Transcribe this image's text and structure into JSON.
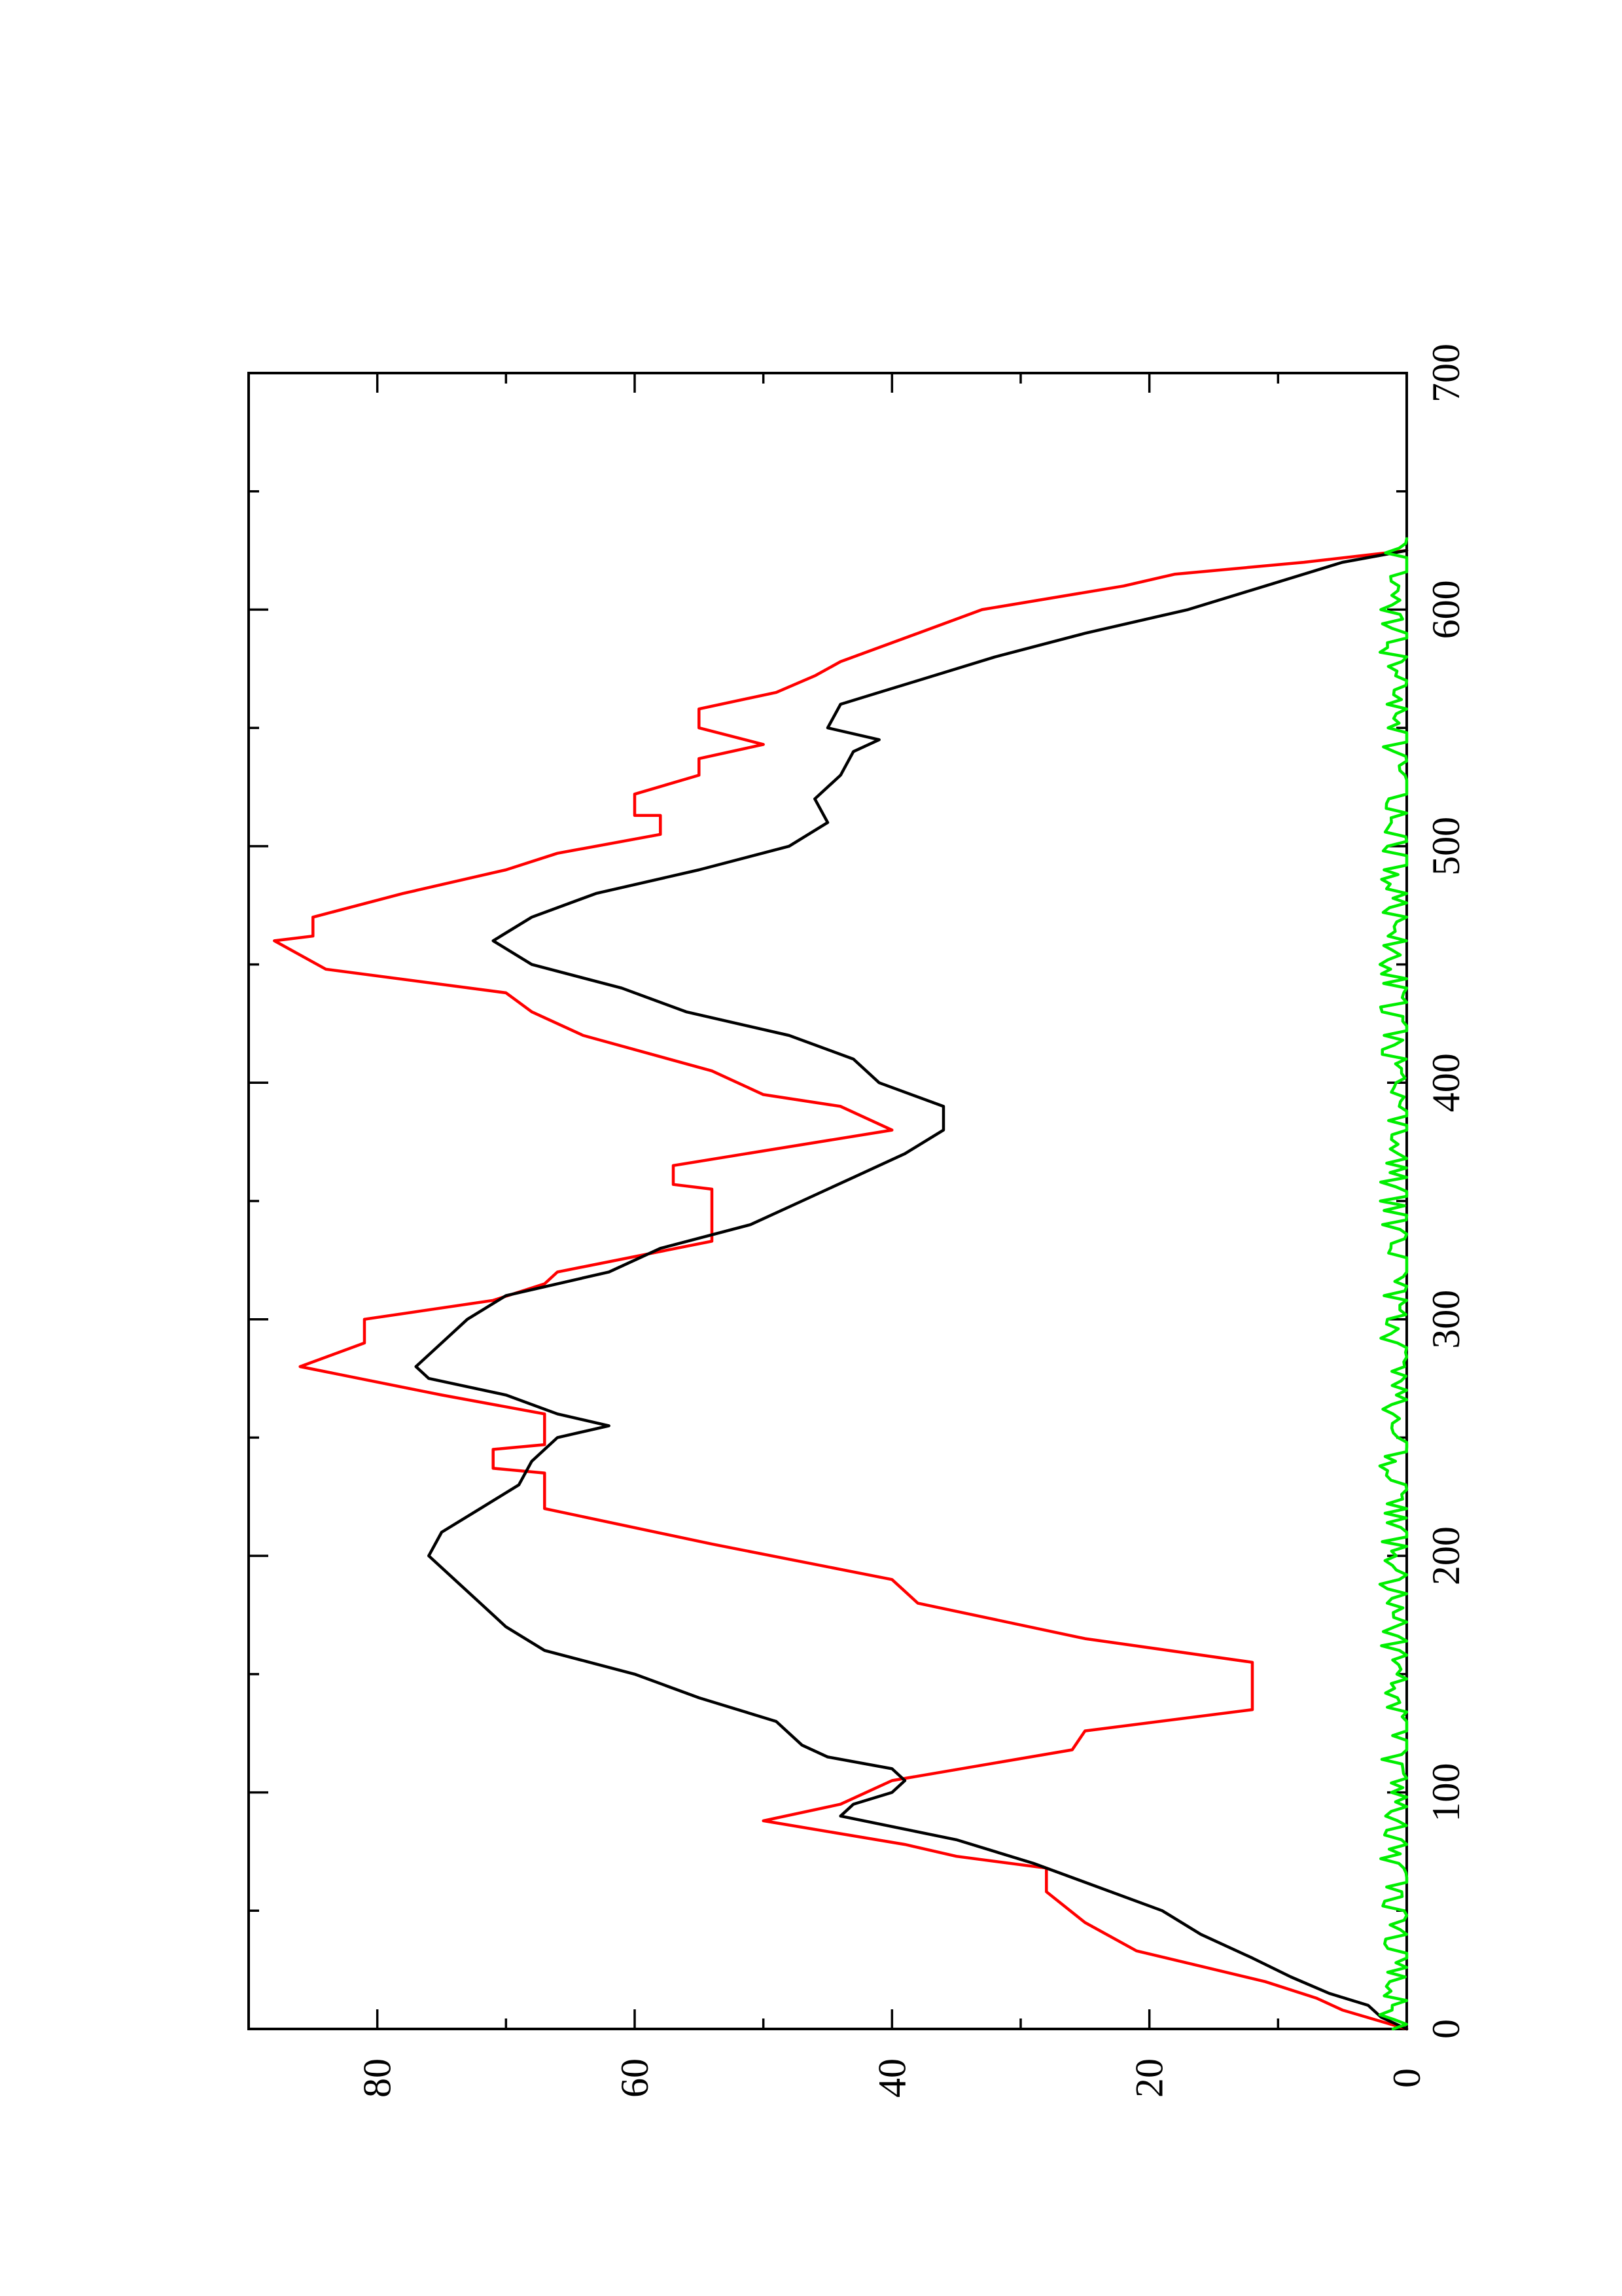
{
  "chart_data": {
    "type": "line",
    "orientation": "rotated-90-ccw",
    "title": "",
    "xlabel": "",
    "ylabel": "",
    "xlim": [
      0,
      700
    ],
    "ylim": [
      0,
      90
    ],
    "x_ticks": [
      0,
      100,
      200,
      300,
      400,
      500,
      600,
      700
    ],
    "y_ticks": [
      0,
      20,
      40,
      60,
      80
    ],
    "x_minor_ticks": [
      50,
      150,
      250,
      350,
      450,
      550,
      650
    ],
    "y_minor_ticks": [
      10,
      30,
      50,
      70
    ],
    "grid": false,
    "legend": "none",
    "series": [
      {
        "color": "#ff0000",
        "style": "step",
        "points": [
          [
            0,
            0
          ],
          [
            8,
            5
          ],
          [
            13,
            7
          ],
          [
            20,
            11
          ],
          [
            33,
            21
          ],
          [
            45,
            25
          ],
          [
            58,
            28
          ],
          [
            68,
            28
          ],
          [
            73,
            35
          ],
          [
            78,
            39
          ],
          [
            88,
            50
          ],
          [
            95,
            44
          ],
          [
            105,
            40
          ],
          [
            118,
            26
          ],
          [
            126,
            25
          ],
          [
            135,
            12
          ],
          [
            155,
            12
          ],
          [
            165,
            25
          ],
          [
            180,
            38
          ],
          [
            190,
            40
          ],
          [
            205,
            54
          ],
          [
            220,
            67
          ],
          [
            235,
            67
          ],
          [
            237,
            71
          ],
          [
            245,
            71
          ],
          [
            247,
            67
          ],
          [
            260,
            67
          ],
          [
            268,
            75
          ],
          [
            280,
            86
          ],
          [
            290,
            81
          ],
          [
            300,
            81
          ],
          [
            308,
            71
          ],
          [
            315,
            67
          ],
          [
            320,
            66
          ],
          [
            333,
            54
          ],
          [
            355,
            54
          ],
          [
            357,
            57
          ],
          [
            365,
            57
          ],
          [
            380,
            40
          ],
          [
            390,
            44
          ],
          [
            395,
            50
          ],
          [
            405,
            54
          ],
          [
            420,
            64
          ],
          [
            430,
            68
          ],
          [
            438,
            70
          ],
          [
            448,
            84
          ],
          [
            460,
            88
          ],
          [
            462,
            85
          ],
          [
            470,
            85
          ],
          [
            480,
            78
          ],
          [
            490,
            70
          ],
          [
            497,
            66
          ],
          [
            505,
            58
          ],
          [
            513,
            58
          ],
          [
            513,
            60
          ],
          [
            522,
            60
          ],
          [
            530,
            55
          ],
          [
            537,
            55
          ],
          [
            543,
            50
          ],
          [
            550,
            55
          ],
          [
            558,
            55
          ],
          [
            565,
            49
          ],
          [
            572,
            46
          ],
          [
            578,
            44
          ],
          [
            590,
            38
          ],
          [
            600,
            33
          ],
          [
            610,
            22
          ],
          [
            615,
            18
          ],
          [
            620,
            8
          ],
          [
            625,
            0
          ]
        ]
      },
      {
        "color": "#000000",
        "style": "line",
        "points": [
          [
            0,
            0
          ],
          [
            5,
            2
          ],
          [
            10,
            3
          ],
          [
            15,
            6
          ],
          [
            22,
            9
          ],
          [
            30,
            12
          ],
          [
            40,
            16
          ],
          [
            50,
            19
          ],
          [
            60,
            24
          ],
          [
            70,
            29
          ],
          [
            80,
            35
          ],
          [
            90,
            44
          ],
          [
            95,
            43
          ],
          [
            100,
            40
          ],
          [
            105,
            39
          ],
          [
            110,
            40
          ],
          [
            115,
            45
          ],
          [
            120,
            47
          ],
          [
            130,
            49
          ],
          [
            140,
            55
          ],
          [
            150,
            60
          ],
          [
            160,
            67
          ],
          [
            170,
            70
          ],
          [
            180,
            72
          ],
          [
            190,
            74
          ],
          [
            200,
            76
          ],
          [
            210,
            75
          ],
          [
            220,
            72
          ],
          [
            230,
            69
          ],
          [
            240,
            68
          ],
          [
            250,
            66
          ],
          [
            255,
            62
          ],
          [
            260,
            66
          ],
          [
            268,
            70
          ],
          [
            275,
            76
          ],
          [
            280,
            77
          ],
          [
            290,
            75
          ],
          [
            300,
            73
          ],
          [
            310,
            70
          ],
          [
            320,
            62
          ],
          [
            330,
            58
          ],
          [
            340,
            51
          ],
          [
            350,
            47
          ],
          [
            360,
            43
          ],
          [
            370,
            39
          ],
          [
            380,
            36
          ],
          [
            390,
            36
          ],
          [
            400,
            41
          ],
          [
            410,
            43
          ],
          [
            420,
            48
          ],
          [
            430,
            56
          ],
          [
            440,
            61
          ],
          [
            450,
            68
          ],
          [
            460,
            71
          ],
          [
            470,
            68
          ],
          [
            480,
            63
          ],
          [
            490,
            55
          ],
          [
            500,
            48
          ],
          [
            510,
            45
          ],
          [
            520,
            46
          ],
          [
            530,
            44
          ],
          [
            540,
            43
          ],
          [
            545,
            41
          ],
          [
            550,
            45
          ],
          [
            560,
            44
          ],
          [
            565,
            41
          ],
          [
            570,
            38
          ],
          [
            580,
            32
          ],
          [
            590,
            25
          ],
          [
            600,
            17
          ],
          [
            610,
            11
          ],
          [
            620,
            5
          ],
          [
            625,
            0
          ]
        ]
      },
      {
        "color": "#00ee00",
        "style": "noise",
        "baseline": 0.6,
        "amplitude": 1.5,
        "x_start": 0,
        "x_end": 630
      }
    ]
  }
}
